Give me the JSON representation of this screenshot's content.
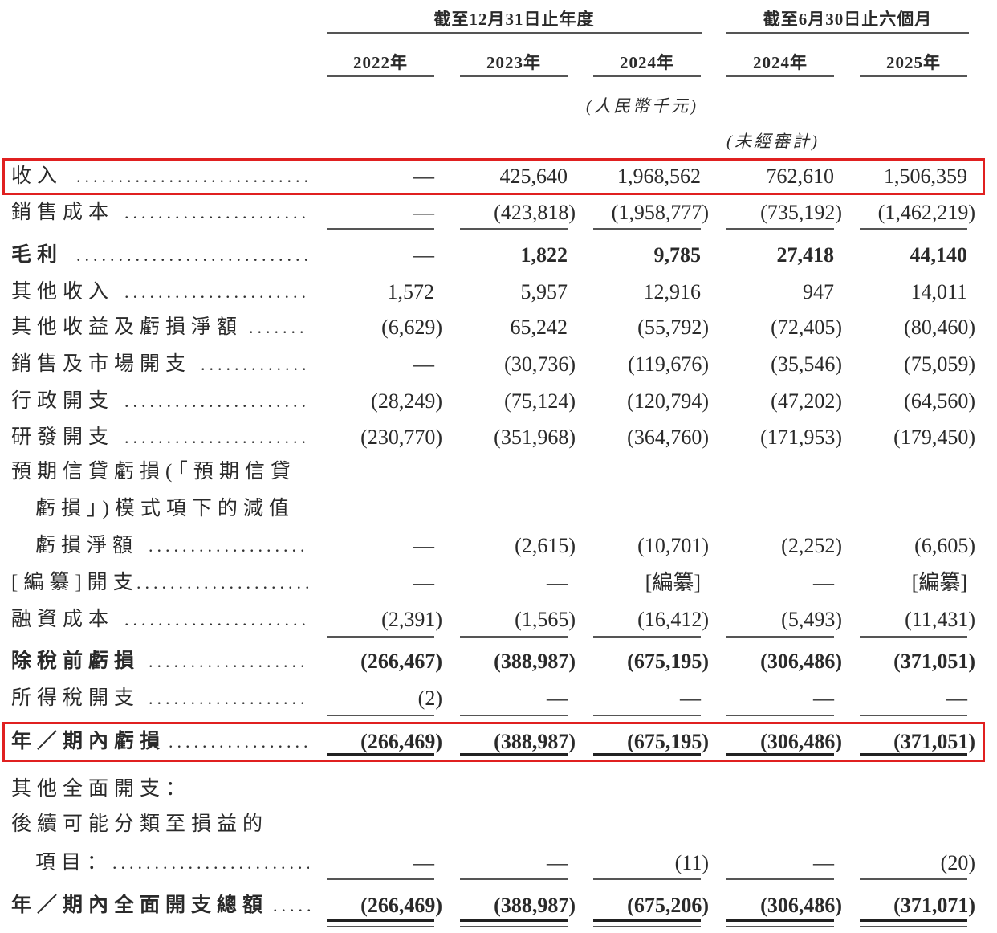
{
  "header": {
    "group_year": "截至12月31日止年度",
    "group_half": "截至6月30日止六個月",
    "columns": [
      "2022年",
      "2023年",
      "2024年",
      "2024年",
      "2025年"
    ],
    "unit": "(人民幣千元)",
    "unaudited": "(未經審計)"
  },
  "rows": [
    {
      "label": "收入",
      "values": [
        "—",
        "425,640",
        "1,968,562",
        "762,610",
        "1,506,359"
      ],
      "highlight": true
    },
    {
      "label": "銷售成本",
      "values": [
        "—",
        "(423,818)",
        "(1,958,777)",
        "(735,192)",
        "(1,462,219)"
      ]
    },
    {
      "label": "毛利",
      "values": [
        "—",
        "1,822",
        "9,785",
        "27,418",
        "44,140"
      ],
      "bold": true
    },
    {
      "label": "其他收入",
      "values": [
        "1,572",
        "5,957",
        "12,916",
        "947",
        "14,011"
      ]
    },
    {
      "label": "其他收益及虧損淨額",
      "values": [
        "(6,629)",
        "65,242",
        "(55,792)",
        "(72,405)",
        "(80,460)"
      ]
    },
    {
      "label": "銷售及市場開支",
      "values": [
        "—",
        "(30,736)",
        "(119,676)",
        "(35,546)",
        "(75,059)"
      ]
    },
    {
      "label": "行政開支",
      "values": [
        "(28,249)",
        "(75,124)",
        "(120,794)",
        "(47,202)",
        "(64,560)"
      ]
    },
    {
      "label": "研發開支",
      "values": [
        "(230,770)",
        "(351,968)",
        "(364,760)",
        "(171,953)",
        "(179,450)"
      ]
    },
    {
      "label": "預期信貸虧損(「預期信貸",
      "values": []
    },
    {
      "label": "虧損」)模式項下的減值",
      "values": []
    },
    {
      "label": "虧損淨額",
      "values": [
        "—",
        "(2,615)",
        "(10,701)",
        "(2,252)",
        "(6,605)"
      ]
    },
    {
      "label": "[編纂]開支",
      "values": [
        "—",
        "—",
        "[編纂]",
        "—",
        "[編纂]"
      ]
    },
    {
      "label": "融資成本",
      "values": [
        "(2,391)",
        "(1,565)",
        "(16,412)",
        "(5,493)",
        "(11,431)"
      ]
    },
    {
      "label": "除稅前虧損",
      "values": [
        "(266,467)",
        "(388,987)",
        "(675,195)",
        "(306,486)",
        "(371,051)"
      ],
      "bold": true
    },
    {
      "label": "所得稅開支",
      "values": [
        "(2)",
        "—",
        "—",
        "—",
        "—"
      ]
    },
    {
      "label": "年／期內虧損",
      "values": [
        "(266,469)",
        "(388,987)",
        "(675,195)",
        "(306,486)",
        "(371,051)"
      ],
      "bold": true,
      "highlight": true
    },
    {
      "label": "其他全面開支：",
      "values": []
    },
    {
      "label": "後續可能分類至損益的",
      "values": []
    },
    {
      "label": "項目：",
      "values": [
        "—",
        "—",
        "(11)",
        "—",
        "(20)"
      ]
    },
    {
      "label": "年／期內全面開支總額",
      "values": [
        "(266,469)",
        "(388,987)",
        "(675,206)",
        "(306,486)",
        "(371,071)"
      ],
      "bold": true
    }
  ],
  "highlight_color": "#e02020"
}
